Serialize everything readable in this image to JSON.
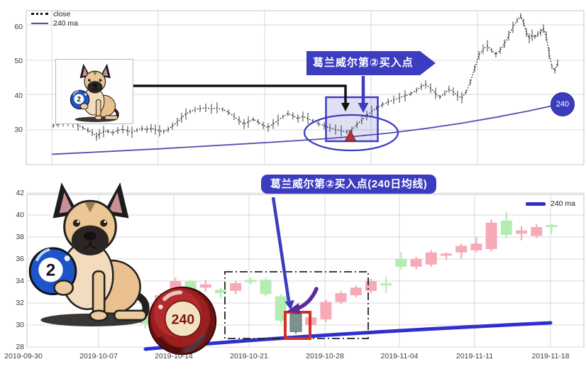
{
  "colors": {
    "accent": "#3c3cc0",
    "ma_top_line": "#5151b4",
    "ma_bottom_line": "#2f2fd0",
    "candle_up": "#f6aab6",
    "candle_down": "#b4ecb4",
    "buy_candle": "#7d918c",
    "red_box": "#d63026",
    "buy_triangle": "#b03434",
    "grid": "#d9d9d9",
    "frame": "#c4c4c4",
    "close_line": "#111111",
    "black_arrow": "#111111",
    "purple_arrow": "#5c2b9b"
  },
  "chart_data": [
    {
      "type": "line",
      "panel": "top",
      "legend": [
        "close",
        "240 ma"
      ],
      "annotation": "葛兰威尔第②买入点",
      "badge": "240",
      "y_ticks": [
        60,
        50,
        40,
        30
      ],
      "ylim": [
        20,
        65
      ],
      "x_ticks": [],
      "buy_point": {
        "approx_value": 29.4,
        "marker": "red-triangle-in-blue-box-and-ellipse"
      },
      "series": [
        {
          "name": "close",
          "style": "dotted",
          "points": [
            [
              75,
              31.2
            ],
            [
              82,
              31.6
            ],
            [
              89,
              32.0
            ],
            [
              96,
              32.3
            ],
            [
              103,
              32.1
            ],
            [
              110,
              31.4
            ],
            [
              117,
              30.6
            ],
            [
              124,
              29.9
            ],
            [
              130,
              29.2
            ],
            [
              136,
              28.1
            ],
            [
              140,
              28.8
            ],
            [
              146,
              29.5
            ],
            [
              152,
              29.6
            ],
            [
              159,
              29.1
            ],
            [
              166,
              29.8
            ],
            [
              173,
              30.2
            ],
            [
              180,
              29.7
            ],
            [
              186,
              29.3
            ],
            [
              193,
              29.9
            ],
            [
              200,
              30.4
            ],
            [
              207,
              30.1
            ],
            [
              213,
              30.5
            ],
            [
              219,
              30.1
            ],
            [
              225,
              29.7
            ],
            [
              231,
              29.5
            ],
            [
              237,
              30.1
            ],
            [
              243,
              31.1
            ],
            [
              250,
              32.3
            ],
            [
              256,
              33.5
            ],
            [
              262,
              34.6
            ],
            [
              268,
              35.3
            ],
            [
              275,
              35.9
            ],
            [
              282,
              36.2
            ],
            [
              290,
              36.4
            ],
            [
              298,
              36.1
            ],
            [
              306,
              36.4
            ],
            [
              314,
              35.9
            ],
            [
              322,
              35.1
            ],
            [
              330,
              33.9
            ],
            [
              337,
              32.7
            ],
            [
              344,
              31.7
            ],
            [
              350,
              32.3
            ],
            [
              357,
              33.1
            ],
            [
              364,
              32.3
            ],
            [
              371,
              31.3
            ],
            [
              378,
              30.7
            ],
            [
              385,
              31.7
            ],
            [
              392,
              32.8
            ],
            [
              399,
              33.8
            ],
            [
              406,
              34.8
            ],
            [
              413,
              34.1
            ],
            [
              420,
              33.3
            ],
            [
              427,
              33.9
            ],
            [
              434,
              33.3
            ],
            [
              441,
              32.6
            ],
            [
              449,
              31.8
            ],
            [
              457,
              31.2
            ],
            [
              465,
              30.6
            ],
            [
              473,
              30.1
            ],
            [
              481,
              29.7
            ],
            [
              489,
              29.4
            ],
            [
              496,
              30.1
            ],
            [
              503,
              31.5
            ],
            [
              510,
              32.9
            ],
            [
              517,
              34.2
            ],
            [
              524,
              35.3
            ],
            [
              531,
              36.4
            ],
            [
              539,
              37.3
            ],
            [
              547,
              38.1
            ],
            [
              555,
              38.7
            ],
            [
              563,
              39.3
            ],
            [
              571,
              39.9
            ],
            [
              579,
              40.5
            ],
            [
              587,
              41.5
            ],
            [
              594,
              42.6
            ],
            [
              600,
              43.2
            ],
            [
              607,
              42.1
            ],
            [
              614,
              40.6
            ],
            [
              620,
              39.5
            ],
            [
              627,
              40.7
            ],
            [
              633,
              41.8
            ],
            [
              639,
              41.1
            ],
            [
              645,
              39.9
            ],
            [
              651,
              39.3
            ],
            [
              657,
              41.0
            ],
            [
              663,
              43.9
            ],
            [
              669,
              47.8
            ],
            [
              675,
              51.7
            ],
            [
              681,
              53.4
            ],
            [
              687,
              54.4
            ],
            [
              693,
              53.1
            ],
            [
              699,
              51.9
            ],
            [
              705,
              53.1
            ],
            [
              711,
              55.0
            ],
            [
              717,
              57.4
            ],
            [
              723,
              59.8
            ],
            [
              729,
              61.8
            ],
            [
              734,
              63.1
            ],
            [
              738,
              61.2
            ],
            [
              742,
              58.3
            ],
            [
              746,
              56.6
            ],
            [
              750,
              57.5
            ],
            [
              754,
              57.0
            ],
            [
              758,
              57.8
            ],
            [
              762,
              58.4
            ],
            [
              766,
              59.4
            ],
            [
              770,
              57.2
            ],
            [
              774,
              52.3
            ],
            [
              778,
              48.3
            ],
            [
              782,
              47.2
            ],
            [
              786,
              49.4
            ]
          ]
        },
        {
          "name": "240 ma",
          "style": "solid",
          "points": [
            [
              73,
              22.9
            ],
            [
              150,
              23.7
            ],
            [
              225,
              24.5
            ],
            [
              300,
              25.4
            ],
            [
              375,
              26.3
            ],
            [
              450,
              27.3
            ],
            [
              500,
              28.1
            ],
            [
              550,
              29.1
            ],
            [
              600,
              30.4
            ],
            [
              650,
              31.9
            ],
            [
              700,
              33.7
            ],
            [
              745,
              35.5
            ],
            [
              790,
              37.5
            ]
          ]
        }
      ]
    },
    {
      "type": "candlestick",
      "panel": "bottom",
      "legend": [
        "240 ma"
      ],
      "annotation": "葛兰威尔第②买入点(240日均线)",
      "y_ticks": [
        42,
        40,
        38,
        36,
        34,
        32,
        30,
        28
      ],
      "ylim": [
        28,
        42
      ],
      "x_tick_labels": [
        "2019-09-30",
        "2019-10-07",
        "2019-10-14",
        "2019-10-21",
        "2019-10-28",
        "2019-11-04",
        "2019-11-11",
        "2019-11-18"
      ],
      "candles": [
        {
          "date": "2019-10-10",
          "o": 31.1,
          "h": 31.3,
          "l": 29.7,
          "c": 30.1
        },
        {
          "date": "2019-10-11",
          "o": 30.3,
          "h": 32.9,
          "l": 30.1,
          "c": 32.7
        },
        {
          "date": "2019-10-14",
          "o": 33.2,
          "h": 34.3,
          "l": 33.0,
          "c": 34.0
        },
        {
          "date": "2019-10-15",
          "o": 34.0,
          "h": 34.1,
          "l": 32.5,
          "c": 33.0
        },
        {
          "date": "2019-10-16",
          "o": 33.4,
          "h": 34.1,
          "l": 33.0,
          "c": 33.7
        },
        {
          "date": "2019-10-17",
          "o": 33.2,
          "h": 33.4,
          "l": 32.4,
          "c": 32.9
        },
        {
          "date": "2019-10-18",
          "o": 33.1,
          "h": 34.0,
          "l": 32.8,
          "c": 33.8
        },
        {
          "date": "2019-10-21",
          "o": 34.1,
          "h": 34.3,
          "l": 33.7,
          "c": 33.9
        },
        {
          "date": "2019-10-22",
          "o": 34.1,
          "h": 34.3,
          "l": 32.6,
          "c": 32.8
        },
        {
          "date": "2019-10-23",
          "o": 32.6,
          "h": 32.8,
          "l": 30.2,
          "c": 30.4
        },
        {
          "date": "2019-10-24",
          "o": 31.0,
          "h": 31.2,
          "l": 29.2,
          "c": 29.4,
          "buy_point": true
        },
        {
          "date": "2019-10-25",
          "o": 30.0,
          "h": 30.9,
          "l": 29.8,
          "c": 30.7
        },
        {
          "date": "2019-10-28",
          "o": 30.5,
          "h": 32.3,
          "l": 30.3,
          "c": 32.1
        },
        {
          "date": "2019-10-29",
          "o": 32.1,
          "h": 33.1,
          "l": 31.9,
          "c": 32.9
        },
        {
          "date": "2019-10-30",
          "o": 32.7,
          "h": 33.6,
          "l": 32.5,
          "c": 33.4
        },
        {
          "date": "2019-10-31",
          "o": 33.1,
          "h": 34.2,
          "l": 32.9,
          "c": 34.0
        },
        {
          "date": "2019-11-01",
          "o": 33.8,
          "h": 34.4,
          "l": 32.9,
          "c": 33.6
        },
        {
          "date": "2019-11-04",
          "o": 36.0,
          "h": 36.6,
          "l": 35.0,
          "c": 35.3
        },
        {
          "date": "2019-11-05",
          "o": 35.3,
          "h": 36.2,
          "l": 35.1,
          "c": 36.0
        },
        {
          "date": "2019-11-06",
          "o": 35.5,
          "h": 36.8,
          "l": 35.3,
          "c": 36.6
        },
        {
          "date": "2019-11-07",
          "o": 36.3,
          "h": 36.6,
          "l": 35.9,
          "c": 36.5
        },
        {
          "date": "2019-11-08",
          "o": 36.6,
          "h": 37.4,
          "l": 36.0,
          "c": 37.2
        },
        {
          "date": "2019-11-11",
          "o": 36.8,
          "h": 38.0,
          "l": 36.6,
          "c": 37.4
        },
        {
          "date": "2019-11-12",
          "o": 36.9,
          "h": 39.6,
          "l": 36.7,
          "c": 39.3
        },
        {
          "date": "2019-11-13",
          "o": 39.5,
          "h": 40.3,
          "l": 37.9,
          "c": 38.2
        },
        {
          "date": "2019-11-14",
          "o": 38.3,
          "h": 39.0,
          "l": 37.7,
          "c": 38.6
        },
        {
          "date": "2019-11-15",
          "o": 38.1,
          "h": 39.2,
          "l": 37.9,
          "c": 38.9
        },
        {
          "date": "2019-11-18",
          "o": 39.1,
          "h": 39.2,
          "l": 38.3,
          "c": 38.9
        }
      ],
      "ma_points": [
        [
          "2019-10-10",
          27.8
        ],
        [
          "2019-10-24",
          29.0
        ],
        [
          "2019-11-18",
          30.2
        ]
      ]
    }
  ],
  "illustrations": {
    "dog_ball_label": "2",
    "red_ball_label": "240"
  }
}
